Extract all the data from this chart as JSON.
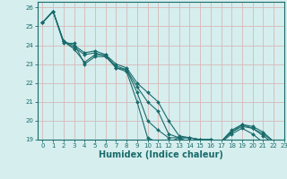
{
  "xlabel": "Humidex (Indice chaleur)",
  "xlim": [
    -0.5,
    23
  ],
  "ylim": [
    19,
    26.3
  ],
  "yticks": [
    19,
    20,
    21,
    22,
    23,
    24,
    25,
    26
  ],
  "xticks": [
    0,
    1,
    2,
    3,
    4,
    5,
    6,
    7,
    8,
    9,
    10,
    11,
    12,
    13,
    14,
    15,
    16,
    17,
    18,
    19,
    20,
    21,
    22,
    23
  ],
  "bg_color": "#d6eeee",
  "grid_color": "#d8b8b8",
  "line_color": "#1a6b6b",
  "series": [
    [
      25.2,
      25.8,
      24.1,
      24.1,
      23.0,
      23.4,
      23.4,
      22.8,
      22.6,
      21.0,
      19.1,
      18.85,
      18.85,
      19.1,
      18.85,
      18.85,
      18.85,
      18.85,
      19.3,
      19.6,
      19.3,
      18.85,
      18.75
    ],
    [
      25.2,
      25.8,
      24.2,
      23.8,
      23.1,
      23.5,
      23.5,
      22.8,
      22.7,
      21.5,
      20.0,
      19.5,
      19.1,
      19.1,
      19.1,
      19.0,
      19.0,
      18.9,
      19.4,
      19.7,
      19.6,
      19.2,
      18.8
    ],
    [
      25.2,
      25.8,
      24.2,
      23.9,
      23.5,
      23.6,
      23.4,
      22.9,
      22.7,
      21.8,
      21.0,
      20.5,
      19.3,
      19.1,
      19.1,
      19.0,
      19.0,
      18.9,
      19.4,
      19.8,
      19.6,
      19.3,
      18.9
    ],
    [
      25.2,
      25.8,
      24.2,
      24.0,
      23.6,
      23.7,
      23.5,
      23.0,
      22.8,
      22.0,
      21.5,
      21.0,
      20.0,
      19.2,
      19.1,
      19.0,
      19.0,
      18.9,
      19.5,
      19.8,
      19.7,
      19.4,
      18.9
    ]
  ],
  "ylabel_fontsize": 5.5,
  "xlabel_fontsize": 7,
  "tick_fontsize": 5
}
